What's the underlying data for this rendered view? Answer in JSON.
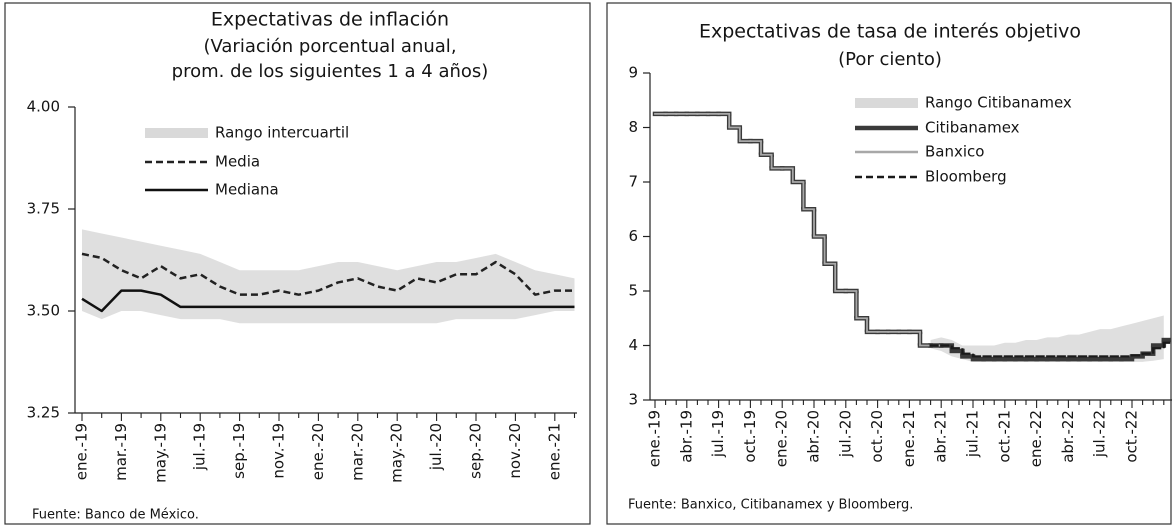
{
  "chart_data": [
    {
      "type": "line",
      "title": "Expectativas de inflación",
      "subtitle": [
        "(Variación porcentual anual,",
        "prom. de los siguientes 1 a 4 años)"
      ],
      "source": "Fuente: Banco de México.",
      "categories": [
        "ene.-19",
        null,
        "mar.-19",
        null,
        "may.-19",
        null,
        "jul.-19",
        null,
        "sep.-19",
        null,
        "nov.-19",
        null,
        "ene.-20",
        null,
        "mar.-20",
        null,
        "may.-20",
        null,
        "jul.-20",
        null,
        "sep.-20",
        null,
        "nov.-20",
        null,
        "ene.-21",
        null
      ],
      "series": [
        {
          "name": "Rango intercuartil",
          "color": "#d9d9d9",
          "upper": [
            3.7,
            3.69,
            3.68,
            3.67,
            3.66,
            3.65,
            3.64,
            3.62,
            3.6,
            3.6,
            3.6,
            3.6,
            3.61,
            3.62,
            3.62,
            3.61,
            3.6,
            3.61,
            3.62,
            3.62,
            3.63,
            3.64,
            3.62,
            3.6,
            3.59,
            3.58
          ],
          "lower": [
            3.5,
            3.48,
            3.5,
            3.5,
            3.49,
            3.48,
            3.48,
            3.48,
            3.47,
            3.47,
            3.47,
            3.47,
            3.47,
            3.47,
            3.47,
            3.47,
            3.47,
            3.47,
            3.47,
            3.48,
            3.48,
            3.48,
            3.48,
            3.49,
            3.5,
            3.5
          ]
        },
        {
          "name": "Media",
          "color": "#222222",
          "dash": true,
          "values": [
            3.64,
            3.63,
            3.6,
            3.58,
            3.61,
            3.58,
            3.59,
            3.56,
            3.54,
            3.54,
            3.55,
            3.54,
            3.55,
            3.57,
            3.58,
            3.56,
            3.55,
            3.58,
            3.57,
            3.59,
            3.59,
            3.62,
            3.59,
            3.54,
            3.55,
            3.55
          ]
        },
        {
          "name": "Mediana",
          "color": "#111111",
          "values": [
            3.53,
            3.5,
            3.55,
            3.55,
            3.54,
            3.51,
            3.51,
            3.51,
            3.51,
            3.51,
            3.51,
            3.51,
            3.51,
            3.51,
            3.51,
            3.51,
            3.51,
            3.51,
            3.51,
            3.51,
            3.51,
            3.51,
            3.51,
            3.51,
            3.51,
            3.51
          ]
        }
      ],
      "ylim": [
        3.25,
        4.0
      ],
      "yticks": [
        {
          "value": 3.25,
          "label": "3.25"
        },
        {
          "value": 3.5,
          "label": "3.50"
        },
        3.75,
        {
          "value": 4,
          "label": "4.00"
        }
      ]
    },
    {
      "type": "line",
      "title": "Expectativas de tasa de interés objetivo",
      "subtitle": [
        "(Por ciento)"
      ],
      "source": "Fuente: Banxico, Citibanamex y Bloomberg.",
      "categories": [
        "ene.-19",
        null,
        null,
        "abr.-19",
        null,
        null,
        "jul.-19",
        null,
        null,
        "oct.-19",
        null,
        null,
        "ene.-20",
        null,
        null,
        "abr.-20",
        null,
        null,
        "jul.-20",
        null,
        null,
        "oct.-20",
        null,
        null,
        "ene.-21",
        null,
        null,
        "abr.-21",
        null,
        null,
        "jul.-21",
        null,
        null,
        "oct.-21",
        null,
        null,
        "ene.-22",
        null,
        null,
        "abr.-22",
        null,
        null,
        "jul.-22",
        null,
        null,
        "oct.-22",
        null,
        null,
        null
      ],
      "series": [
        {
          "name": "Rango Citibanamex",
          "color": "#d9d9d9",
          "upper": [
            null,
            null,
            null,
            null,
            null,
            null,
            null,
            null,
            null,
            null,
            null,
            null,
            null,
            null,
            null,
            null,
            null,
            null,
            null,
            null,
            null,
            null,
            null,
            null,
            null,
            null,
            4.1,
            4.15,
            4.1,
            4.0,
            4.0,
            4.0,
            4.0,
            4.05,
            4.05,
            4.1,
            4.1,
            4.15,
            4.15,
            4.2,
            4.2,
            4.25,
            4.3,
            4.3,
            4.35,
            4.4,
            4.45,
            4.5,
            4.55
          ],
          "lower": [
            null,
            null,
            null,
            null,
            null,
            null,
            null,
            null,
            null,
            null,
            null,
            null,
            null,
            null,
            null,
            null,
            null,
            null,
            null,
            null,
            null,
            null,
            null,
            null,
            null,
            null,
            3.95,
            3.9,
            3.8,
            3.75,
            3.7,
            3.7,
            3.7,
            3.7,
            3.7,
            3.7,
            3.7,
            3.7,
            3.7,
            3.7,
            3.7,
            3.7,
            3.7,
            3.7,
            3.7,
            3.7,
            3.7,
            3.72,
            3.75
          ]
        },
        {
          "name": "Citibanamex",
          "color": "#3a3a3a",
          "step": true,
          "values": [
            8.25,
            8.25,
            8.25,
            8.25,
            8.25,
            8.25,
            8.25,
            8.0,
            7.75,
            7.75,
            7.5,
            7.25,
            7.25,
            7.0,
            6.5,
            6.0,
            5.5,
            5.0,
            5.0,
            4.5,
            4.25,
            4.25,
            4.25,
            4.25,
            4.25,
            4.0,
            4.0,
            4.0,
            3.9,
            3.8,
            3.75,
            3.75,
            3.75,
            3.75,
            3.75,
            3.75,
            3.75,
            3.75,
            3.75,
            3.75,
            3.75,
            3.75,
            3.75,
            3.75,
            3.75,
            3.8,
            3.85,
            4.0,
            4.1
          ]
        },
        {
          "name": "Banxico",
          "color": "#a8a8a8",
          "step": true,
          "values": [
            8.25,
            8.25,
            8.25,
            8.25,
            8.25,
            8.25,
            8.25,
            8.0,
            7.75,
            7.75,
            7.5,
            7.25,
            7.25,
            7.0,
            6.5,
            6.0,
            5.5,
            5.0,
            5.0,
            4.5,
            4.25,
            4.25,
            4.25,
            4.25,
            4.25,
            4.0,
            4.0,
            null,
            null,
            null,
            null,
            null,
            null,
            null,
            null,
            null,
            null,
            null,
            null,
            null,
            null,
            null,
            null,
            null,
            null,
            null,
            null,
            null,
            null
          ]
        },
        {
          "name": "Bloomberg",
          "color": "#1a1a1a",
          "step": true,
          "dash": true,
          "values": [
            null,
            null,
            null,
            null,
            null,
            null,
            null,
            null,
            null,
            null,
            null,
            null,
            null,
            null,
            null,
            null,
            null,
            null,
            null,
            null,
            null,
            null,
            null,
            null,
            null,
            null,
            4.0,
            4.0,
            3.95,
            3.85,
            3.8,
            3.8,
            3.8,
            3.8,
            3.8,
            3.8,
            3.8,
            3.8,
            3.8,
            3.8,
            3.8,
            3.8,
            3.8,
            3.8,
            3.8,
            3.82,
            3.85,
            3.95,
            4.05
          ]
        }
      ],
      "ylim": [
        3,
        9
      ],
      "yticks": [
        3,
        4,
        5,
        6,
        7,
        8,
        9
      ]
    }
  ]
}
